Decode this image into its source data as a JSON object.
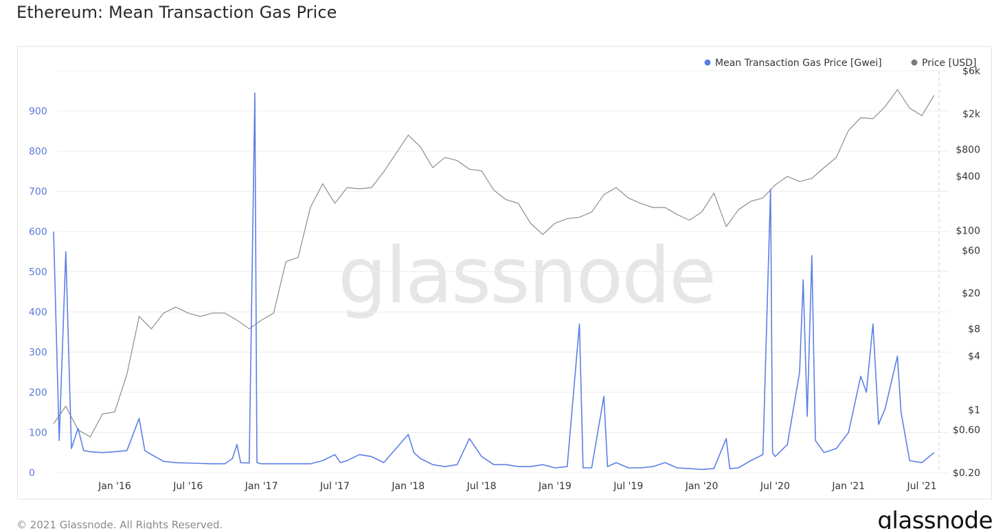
{
  "title": "Ethereum: Mean Transaction Gas Price",
  "footer": {
    "copyright": "© 2021 Glassnode. All Rights Reserved.",
    "brand": "glassnode"
  },
  "watermark": "glassnode",
  "colors": {
    "gas": "#5b7ee5",
    "price": "#8c8c8c",
    "grid": "#ececec",
    "left_axis": "#5a79d8"
  },
  "chart_data": {
    "type": "line",
    "legend": [
      {
        "label": "Mean Transaction Gas Price [Gwei]",
        "color": "#5b7ee5"
      },
      {
        "label": "Price [USD]",
        "color": "#8c8c8c"
      }
    ],
    "legend_position": "top-right",
    "grid": true,
    "x_ticks": [
      "Jan '16",
      "Jul '16",
      "Jan '17",
      "Jul '17",
      "Jan '18",
      "Jul '18",
      "Jan '19",
      "Jul '19",
      "Jan '20",
      "Jul '20",
      "Jan '21",
      "Jul '21"
    ],
    "x_range": [
      "2015-08",
      "2021-08"
    ],
    "y_left": {
      "label": "",
      "range": [
        0,
        1000
      ],
      "ticks": [
        0,
        100,
        200,
        300,
        400,
        500,
        600,
        700,
        800,
        900
      ]
    },
    "y_right": {
      "label": "",
      "scale": "log",
      "range": [
        0.2,
        6000
      ],
      "ticks": [
        "$0.20",
        "$0.60",
        "$1",
        "$4",
        "$8",
        "$20",
        "$60",
        "$100",
        "$400",
        "$800",
        "$2k",
        "$6k"
      ]
    },
    "series": [
      {
        "name": "Mean Transaction Gas Price [Gwei]",
        "axis": "left",
        "points": [
          [
            "2015-08",
            600
          ],
          [
            "2015-08-15",
            80
          ],
          [
            "2015-09",
            550
          ],
          [
            "2015-09-15",
            60
          ],
          [
            "2015-10",
            110
          ],
          [
            "2015-10-15",
            55
          ],
          [
            "2015-11",
            52
          ],
          [
            "2015-12",
            50
          ],
          [
            "2016-01",
            52
          ],
          [
            "2016-02",
            55
          ],
          [
            "2016-03",
            135
          ],
          [
            "2016-03-15",
            55
          ],
          [
            "2016-04",
            45
          ],
          [
            "2016-05",
            28
          ],
          [
            "2016-06",
            25
          ],
          [
            "2016-07",
            24
          ],
          [
            "2016-08",
            23
          ],
          [
            "2016-09",
            22
          ],
          [
            "2016-10",
            22
          ],
          [
            "2016-10-20",
            35
          ],
          [
            "2016-11",
            70
          ],
          [
            "2016-11-10",
            25
          ],
          [
            "2016-12",
            24
          ],
          [
            "2016-12-15",
            945
          ],
          [
            "2016-12-20",
            25
          ],
          [
            "2017-01",
            22
          ],
          [
            "2017-02",
            22
          ],
          [
            "2017-03",
            22
          ],
          [
            "2017-04",
            22
          ],
          [
            "2017-05",
            22
          ],
          [
            "2017-06",
            30
          ],
          [
            "2017-07",
            45
          ],
          [
            "2017-07-15",
            25
          ],
          [
            "2017-08",
            30
          ],
          [
            "2017-09",
            45
          ],
          [
            "2017-10",
            40
          ],
          [
            "2017-11",
            25
          ],
          [
            "2017-12",
            60
          ],
          [
            "2018-01",
            95
          ],
          [
            "2018-01-15",
            50
          ],
          [
            "2018-02",
            35
          ],
          [
            "2018-03",
            20
          ],
          [
            "2018-04",
            15
          ],
          [
            "2018-05",
            20
          ],
          [
            "2018-06",
            85
          ],
          [
            "2018-07",
            40
          ],
          [
            "2018-08",
            20
          ],
          [
            "2018-09",
            20
          ],
          [
            "2018-10",
            15
          ],
          [
            "2018-11",
            15
          ],
          [
            "2018-12",
            20
          ],
          [
            "2019-01",
            12
          ],
          [
            "2019-02",
            15
          ],
          [
            "2019-03",
            370
          ],
          [
            "2019-03-10",
            12
          ],
          [
            "2019-04",
            12
          ],
          [
            "2019-05",
            190
          ],
          [
            "2019-05-10",
            15
          ],
          [
            "2019-06",
            25
          ],
          [
            "2019-07",
            12
          ],
          [
            "2019-08",
            12
          ],
          [
            "2019-09",
            15
          ],
          [
            "2019-10",
            25
          ],
          [
            "2019-11",
            12
          ],
          [
            "2019-12",
            10
          ],
          [
            "2020-01",
            8
          ],
          [
            "2020-02",
            10
          ],
          [
            "2020-03",
            85
          ],
          [
            "2020-03-10",
            10
          ],
          [
            "2020-04",
            12
          ],
          [
            "2020-05",
            30
          ],
          [
            "2020-06",
            45
          ],
          [
            "2020-06-20",
            705
          ],
          [
            "2020-06-25",
            50
          ],
          [
            "2020-07",
            40
          ],
          [
            "2020-08",
            70
          ],
          [
            "2020-09",
            250
          ],
          [
            "2020-09-10",
            480
          ],
          [
            "2020-09-20",
            140
          ],
          [
            "2020-10",
            540
          ],
          [
            "2020-10-10",
            80
          ],
          [
            "2020-11",
            50
          ],
          [
            "2020-12",
            60
          ],
          [
            "2021-01",
            100
          ],
          [
            "2021-02",
            240
          ],
          [
            "2021-02-15",
            200
          ],
          [
            "2021-03",
            370
          ],
          [
            "2021-03-15",
            120
          ],
          [
            "2021-04",
            160
          ],
          [
            "2021-05",
            290
          ],
          [
            "2021-05-10",
            150
          ],
          [
            "2021-06",
            30
          ],
          [
            "2021-07",
            25
          ],
          [
            "2021-08",
            50
          ]
        ]
      },
      {
        "name": "Price [USD]",
        "axis": "right",
        "points": [
          [
            "2015-08",
            0.7
          ],
          [
            "2015-09",
            1.1
          ],
          [
            "2015-10",
            0.6
          ],
          [
            "2015-11",
            0.5
          ],
          [
            "2015-12",
            0.9
          ],
          [
            "2016-01",
            0.95
          ],
          [
            "2016-02",
            2.5
          ],
          [
            "2016-03",
            11
          ],
          [
            "2016-04",
            8
          ],
          [
            "2016-05",
            12
          ],
          [
            "2016-06",
            14
          ],
          [
            "2016-07",
            12
          ],
          [
            "2016-08",
            11
          ],
          [
            "2016-09",
            12
          ],
          [
            "2016-10",
            12
          ],
          [
            "2016-11",
            10
          ],
          [
            "2016-12",
            8
          ],
          [
            "2017-01",
            10
          ],
          [
            "2017-02",
            12
          ],
          [
            "2017-03",
            45
          ],
          [
            "2017-04",
            50
          ],
          [
            "2017-05",
            180
          ],
          [
            "2017-06",
            330
          ],
          [
            "2017-07",
            200
          ],
          [
            "2017-08",
            300
          ],
          [
            "2017-09",
            290
          ],
          [
            "2017-10",
            300
          ],
          [
            "2017-11",
            450
          ],
          [
            "2017-12",
            720
          ],
          [
            "2018-01",
            1150
          ],
          [
            "2018-02",
            850
          ],
          [
            "2018-03",
            500
          ],
          [
            "2018-04",
            650
          ],
          [
            "2018-05",
            600
          ],
          [
            "2018-06",
            480
          ],
          [
            "2018-07",
            460
          ],
          [
            "2018-08",
            280
          ],
          [
            "2018-09",
            220
          ],
          [
            "2018-10",
            200
          ],
          [
            "2018-11",
            120
          ],
          [
            "2018-12",
            90
          ],
          [
            "2019-01",
            120
          ],
          [
            "2019-02",
            135
          ],
          [
            "2019-03",
            140
          ],
          [
            "2019-04",
            160
          ],
          [
            "2019-05",
            250
          ],
          [
            "2019-06",
            300
          ],
          [
            "2019-07",
            230
          ],
          [
            "2019-08",
            200
          ],
          [
            "2019-09",
            180
          ],
          [
            "2019-10",
            180
          ],
          [
            "2019-11",
            150
          ],
          [
            "2019-12",
            130
          ],
          [
            "2020-01",
            160
          ],
          [
            "2020-02",
            260
          ],
          [
            "2020-03",
            110
          ],
          [
            "2020-04",
            170
          ],
          [
            "2020-05",
            210
          ],
          [
            "2020-06",
            230
          ],
          [
            "2020-07",
            320
          ],
          [
            "2020-08",
            400
          ],
          [
            "2020-09",
            350
          ],
          [
            "2020-10",
            380
          ],
          [
            "2020-11",
            500
          ],
          [
            "2020-12",
            650
          ],
          [
            "2021-01",
            1300
          ],
          [
            "2021-02",
            1800
          ],
          [
            "2021-03",
            1750
          ],
          [
            "2021-04",
            2400
          ],
          [
            "2021-05",
            3700
          ],
          [
            "2021-06",
            2300
          ],
          [
            "2021-07",
            1900
          ],
          [
            "2021-08",
            3200
          ]
        ]
      }
    ]
  }
}
